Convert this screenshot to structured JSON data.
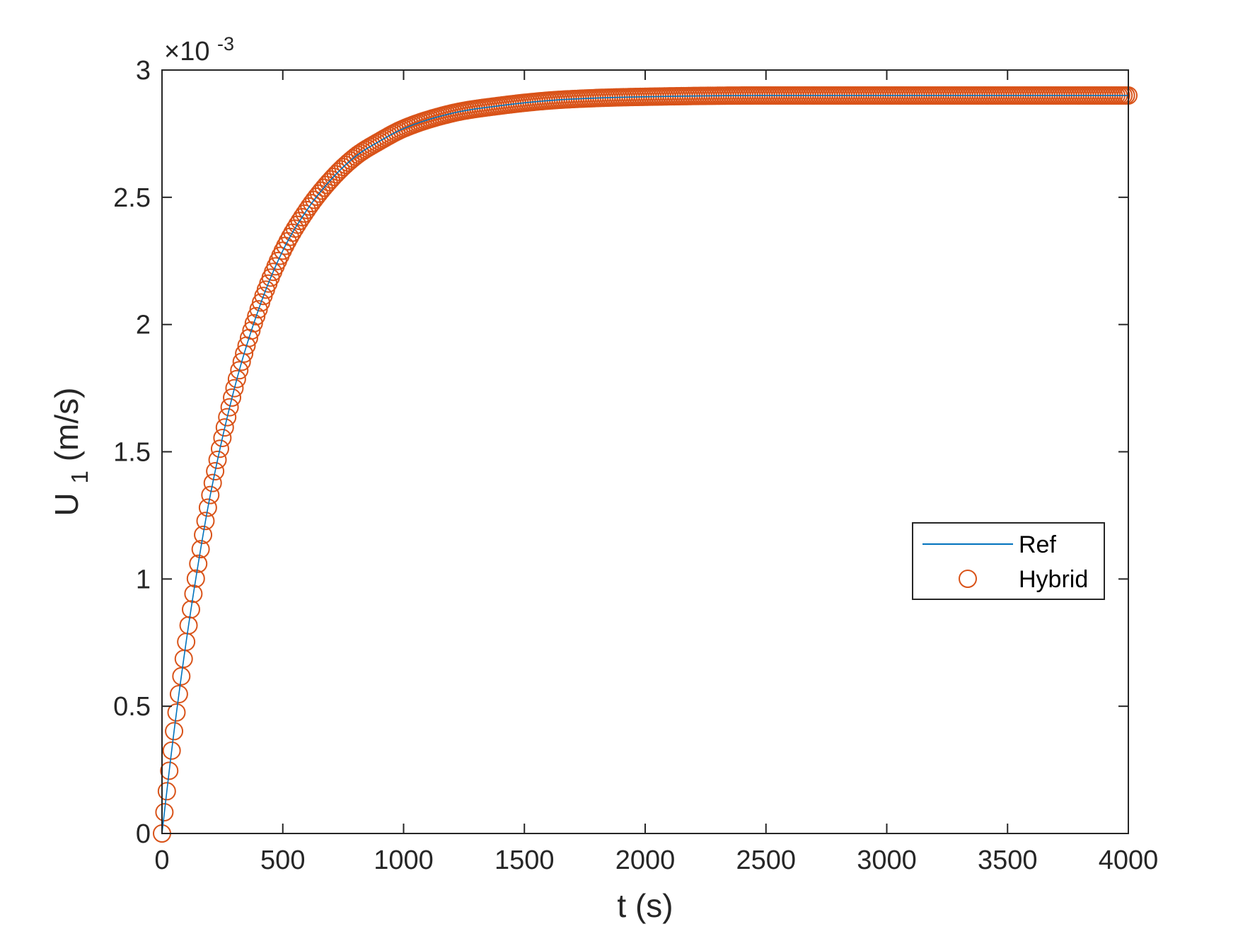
{
  "chart_data": {
    "type": "line",
    "title": "",
    "xlabel": "t (s)",
    "ylabel_main": "U",
    "ylabel_subscript": "1",
    "ylabel_units": " (m/s)",
    "y_exponent_prefix": "×10",
    "y_exponent_power": "-3",
    "xlim": [
      0,
      4000
    ],
    "ylim": [
      0,
      0.003
    ],
    "x_ticks": [
      0,
      500,
      1000,
      1500,
      2000,
      2500,
      3000,
      3500,
      4000
    ],
    "x_tick_labels": [
      "0",
      "500",
      "1000",
      "1500",
      "2000",
      "2500",
      "3000",
      "3500",
      "4000"
    ],
    "y_ticks": [
      0,
      0.0005,
      0.001,
      0.0015,
      0.002,
      0.0025,
      0.003
    ],
    "y_tick_labels": [
      "0",
      "0.5",
      "1",
      "1.5",
      "2",
      "2.5",
      "3"
    ],
    "grid": false,
    "legend_position": "center-right",
    "series": [
      {
        "name": "Ref",
        "style": "line",
        "color": "#0072BD",
        "x": [
          0,
          20,
          50,
          100,
          150,
          200,
          300,
          400,
          500,
          600,
          700,
          800,
          900,
          1000,
          1200,
          1400,
          1600,
          1800,
          2000,
          2500,
          3000,
          3500,
          4000
        ],
        "y": [
          0,
          0.000166,
          0.000402,
          0.000753,
          0.00106,
          0.00133,
          0.00175,
          0.00206,
          0.00229,
          0.00245,
          0.00257,
          0.00266,
          0.00272,
          0.00277,
          0.00283,
          0.00286,
          0.00288,
          0.00289,
          0.002895,
          0.0029,
          0.0029,
          0.0029,
          0.0029
        ]
      },
      {
        "name": "Hybrid",
        "style": "circle",
        "color": "#D95319",
        "x": [
          0,
          20,
          50,
          100,
          150,
          200,
          300,
          400,
          500,
          600,
          700,
          800,
          900,
          1000,
          1200,
          1400,
          1600,
          1800,
          2000,
          2500,
          3000,
          3500,
          4000
        ],
        "y": [
          0,
          0.000166,
          0.000402,
          0.000753,
          0.00106,
          0.00133,
          0.00175,
          0.00206,
          0.00229,
          0.00245,
          0.00257,
          0.00266,
          0.00272,
          0.00277,
          0.00283,
          0.00286,
          0.00288,
          0.00289,
          0.002895,
          0.0029,
          0.0029,
          0.0029,
          0.0029
        ]
      }
    ]
  }
}
